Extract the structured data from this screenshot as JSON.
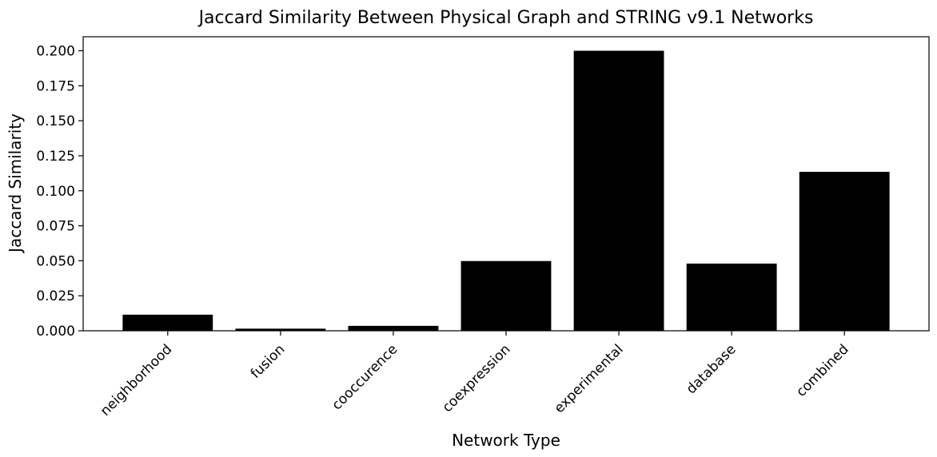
{
  "chart_data": {
    "type": "bar",
    "title": "Jaccard Similarity Between Physical Graph and STRING v9.1 Networks",
    "xlabel": "Network Type",
    "ylabel": "Jaccard Similarity",
    "categories": [
      "neighborhood",
      "fusion",
      "cooccurence",
      "coexpression",
      "experimental",
      "database",
      "combined"
    ],
    "values": [
      0.0115,
      0.0015,
      0.0035,
      0.0498,
      0.2,
      0.048,
      0.1135
    ],
    "ylim": [
      0,
      0.21
    ],
    "yticks": [
      "0.000",
      "0.025",
      "0.050",
      "0.075",
      "0.100",
      "0.125",
      "0.150",
      "0.175",
      "0.200"
    ],
    "ytick_values": [
      0,
      0.025,
      0.05,
      0.075,
      0.1,
      0.125,
      0.15,
      0.175,
      0.2
    ],
    "bar_color": "#000000",
    "grid": false,
    "legend": "none"
  }
}
